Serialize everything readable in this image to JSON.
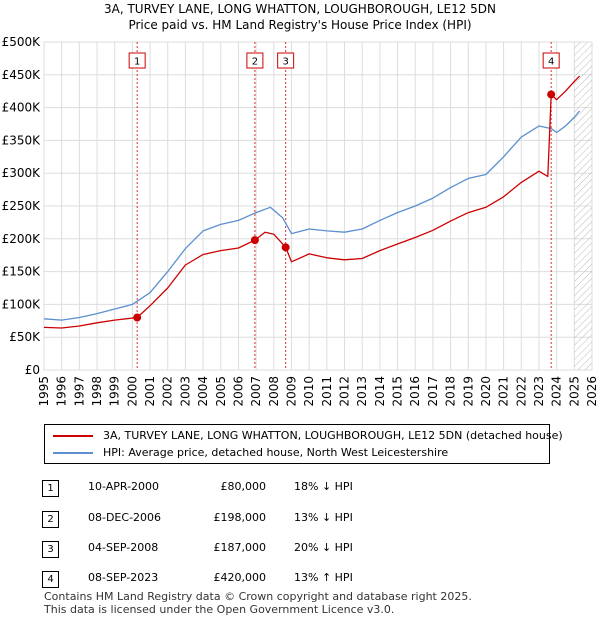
{
  "title": "3A, TURVEY LANE, LONG WHATTON, LOUGHBOROUGH, LE12 5DN",
  "subtitle": "Price paid vs. HM Land Registry's House Price Index (HPI)",
  "colors": {
    "property": "#cc0000",
    "hpi": "#5b8fd0",
    "marker": "#cc0000",
    "hatch": "#bbbbbb",
    "grid": "#dddddd"
  },
  "chart_data": {
    "type": "line",
    "title": "Price paid vs. HM Land Registry's House Price Index (HPI)",
    "xlabel": "",
    "ylabel": "",
    "xlim": [
      1995,
      2026
    ],
    "ylim": [
      0,
      500000
    ],
    "x_ticks": [
      "1995",
      "1996",
      "1997",
      "1998",
      "1999",
      "2000",
      "2001",
      "2002",
      "2003",
      "2004",
      "2005",
      "2006",
      "2007",
      "2008",
      "2009",
      "2010",
      "2011",
      "2012",
      "2013",
      "2014",
      "2015",
      "2016",
      "2017",
      "2018",
      "2019",
      "2020",
      "2021",
      "2022",
      "2023",
      "2024",
      "2025",
      "2026"
    ],
    "y_ticks": [
      {
        "value": 0,
        "label": "£0"
      },
      {
        "value": 50000,
        "label": "£50K"
      },
      {
        "value": 100000,
        "label": "£100K"
      },
      {
        "value": 150000,
        "label": "£150K"
      },
      {
        "value": 200000,
        "label": "£200K"
      },
      {
        "value": 250000,
        "label": "£250K"
      },
      {
        "value": 300000,
        "label": "£300K"
      },
      {
        "value": 350000,
        "label": "£350K"
      },
      {
        "value": 400000,
        "label": "£400K"
      },
      {
        "value": 450000,
        "label": "£450K"
      },
      {
        "value": 500000,
        "label": "£500K"
      }
    ],
    "grid": true,
    "future_hatch_from": 2025.0,
    "series": [
      {
        "name": "3A, TURVEY LANE, LONG WHATTON, LOUGHBOROUGH, LE12 5DN (detached house)",
        "color": "#cc0000",
        "x": [
          1995,
          1996,
          1997,
          1998,
          1999,
          2000.27,
          2001,
          2002,
          2003,
          2004,
          2005,
          2006,
          2006.93,
          2007.5,
          2008.0,
          2008.67,
          2009.0,
          2010,
          2011,
          2012,
          2013,
          2014,
          2015,
          2016,
          2017,
          2018,
          2019,
          2020,
          2021,
          2022,
          2023.0,
          2023.5,
          2023.69,
          2024.0,
          2024.5,
          2025.0,
          2025.3
        ],
        "y": [
          65000,
          64000,
          67000,
          72000,
          76000,
          80000,
          98000,
          125000,
          160000,
          176000,
          182000,
          186000,
          198000,
          210000,
          207000,
          187000,
          165000,
          177000,
          171000,
          168000,
          170000,
          182000,
          192000,
          202000,
          213000,
          227000,
          240000,
          248000,
          264000,
          286000,
          303000,
          295000,
          420000,
          412000,
          425000,
          440000,
          448000
        ]
      },
      {
        "name": "HPI: Average price, detached house, North West Leicestershire",
        "color": "#5b8fd0",
        "x": [
          1995,
          1996,
          1997,
          1998,
          1999,
          2000,
          2001,
          2002,
          2003,
          2004,
          2005,
          2006,
          2007,
          2007.8,
          2008.5,
          2009.0,
          2010,
          2011,
          2012,
          2013,
          2014,
          2015,
          2016,
          2017,
          2018,
          2019,
          2020,
          2021,
          2022,
          2023.0,
          2023.7,
          2024.0,
          2024.5,
          2025.0,
          2025.3
        ],
        "y": [
          78000,
          76000,
          80000,
          86000,
          93000,
          100000,
          118000,
          150000,
          185000,
          212000,
          222000,
          228000,
          240000,
          248000,
          232000,
          208000,
          215000,
          212000,
          210000,
          215000,
          228000,
          240000,
          250000,
          262000,
          278000,
          292000,
          298000,
          325000,
          355000,
          372000,
          368000,
          362000,
          372000,
          385000,
          395000
        ]
      }
    ],
    "markers": [
      {
        "label": "1",
        "x": 2000.27,
        "y": 80000
      },
      {
        "label": "2",
        "x": 2006.93,
        "y": 198000
      },
      {
        "label": "3",
        "x": 2008.67,
        "y": 187000
      },
      {
        "label": "4",
        "x": 2023.69,
        "y": 420000
      }
    ]
  },
  "legend": {
    "property_label": "3A, TURVEY LANE, LONG WHATTON, LOUGHBOROUGH, LE12 5DN (detached house)",
    "hpi_label": "HPI: Average price, detached house, North West Leicestershire"
  },
  "transactions": [
    {
      "badge": "1",
      "date": "10-APR-2000",
      "price": "£80,000",
      "hpi": "18% ↓ HPI"
    },
    {
      "badge": "2",
      "date": "08-DEC-2006",
      "price": "£198,000",
      "hpi": "13% ↓ HPI"
    },
    {
      "badge": "3",
      "date": "04-SEP-2008",
      "price": "£187,000",
      "hpi": "20% ↓ HPI"
    },
    {
      "badge": "4",
      "date": "08-SEP-2023",
      "price": "£420,000",
      "hpi": "13% ↑ HPI"
    }
  ],
  "footer": {
    "line1": "Contains HM Land Registry data © Crown copyright and database right 2025.",
    "line2": "This data is licensed under the Open Government Licence v3.0."
  }
}
